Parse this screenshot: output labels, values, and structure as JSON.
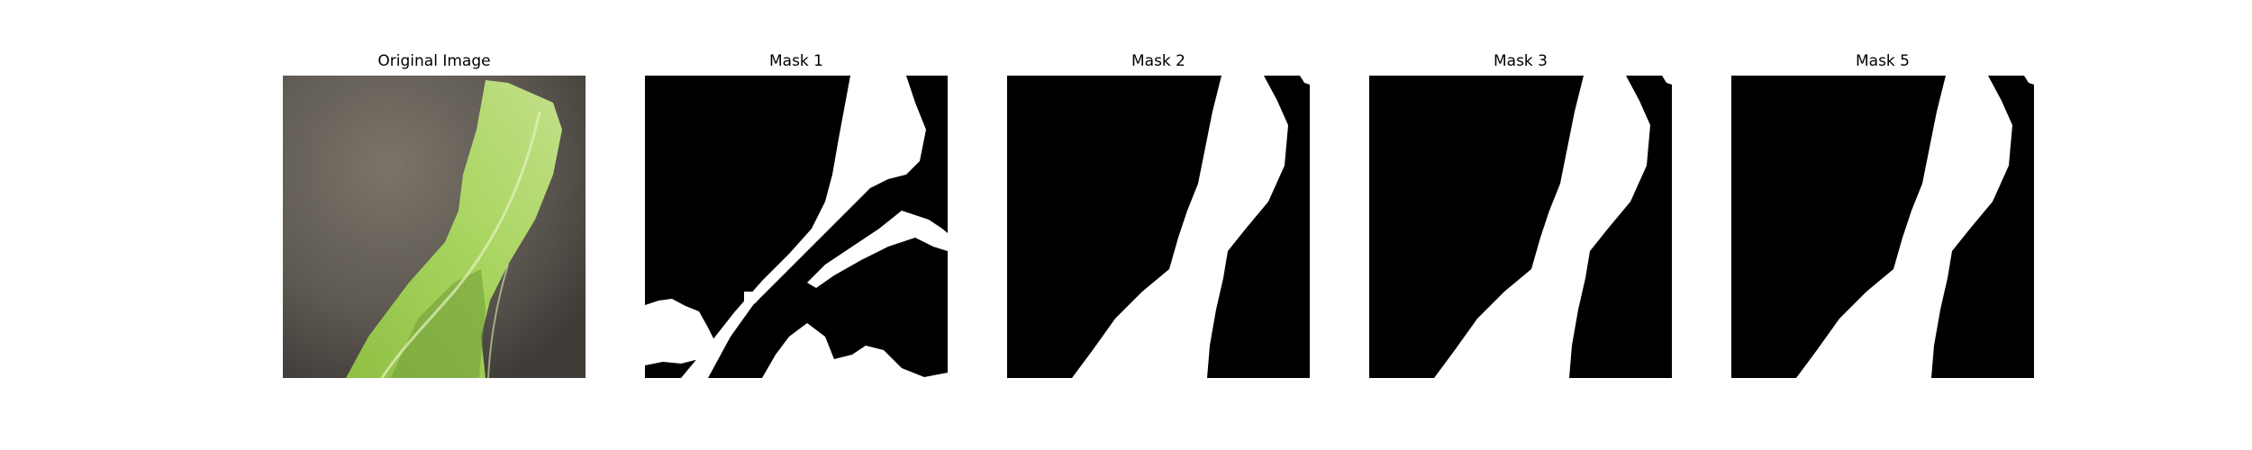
{
  "figure": {
    "panels": [
      {
        "title": "Original Image",
        "kind": "photo"
      },
      {
        "title": "Mask 1",
        "kind": "mask"
      },
      {
        "title": "Mask 2",
        "kind": "mask"
      },
      {
        "title": "Mask 3",
        "kind": "mask"
      },
      {
        "title": "Mask 5",
        "kind": "mask"
      }
    ]
  },
  "colors": {
    "mask_background": "#000000",
    "mask_foreground": "#ffffff",
    "leaf": "#9ccc55",
    "leaf_dark": "#6f9a36",
    "photo_background": "#5e5952"
  }
}
